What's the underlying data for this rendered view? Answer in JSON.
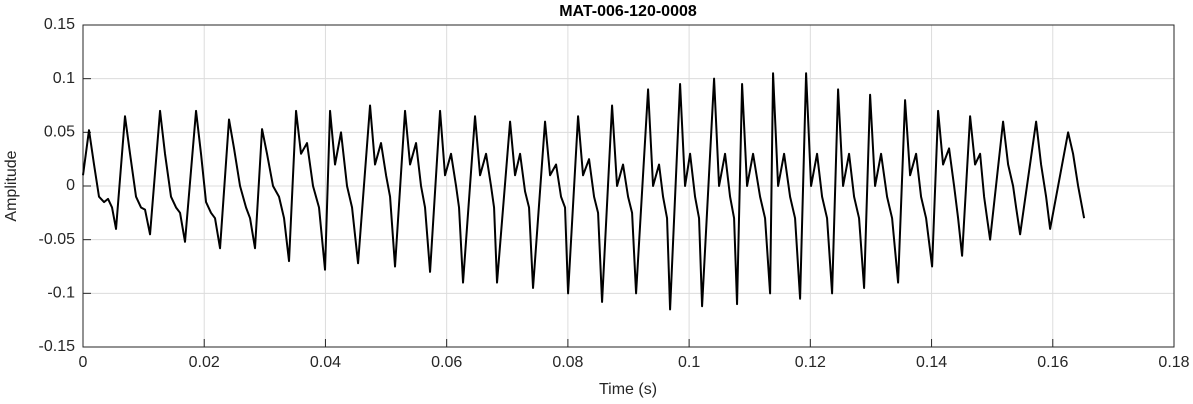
{
  "chart_data": {
    "type": "line",
    "title": "MAT-006-120-0008",
    "x_label": "Time (s)",
    "y_label": "Amplitude",
    "color": "#000000",
    "grid": true,
    "xlim": [
      0,
      0.18
    ],
    "xticks": [
      0,
      0.02,
      0.04,
      0.06,
      0.08,
      0.1,
      0.12,
      0.14,
      0.16,
      0.18
    ],
    "ylim": [
      -0.15,
      0.15
    ],
    "yticks": [
      -0.15,
      -0.1,
      -0.05,
      0,
      0.05,
      0.1,
      0.15
    ],
    "x": [
      0,
      0.00099,
      0.00182,
      0.00264,
      0.00347,
      0.00413,
      0.00479,
      0.00545,
      0.00693,
      0.00776,
      0.00875,
      0.00957,
      0.01023,
      0.01106,
      0.01271,
      0.01353,
      0.01452,
      0.01535,
      0.01601,
      0.01683,
      0.01865,
      0.01947,
      0.0203,
      0.02112,
      0.02178,
      0.02261,
      0.02409,
      0.02492,
      0.02591,
      0.0269,
      0.02756,
      0.02838,
      0.02954,
      0.03036,
      0.03135,
      0.03234,
      0.03317,
      0.03399,
      0.03515,
      0.03597,
      0.03696,
      0.03795,
      0.03894,
      0.03993,
      0.04076,
      0.04158,
      0.04257,
      0.04356,
      0.04439,
      0.04538,
      0.04736,
      0.04818,
      0.04917,
      0.05,
      0.05066,
      0.05148,
      0.05313,
      0.05396,
      0.05495,
      0.05577,
      0.05643,
      0.05726,
      0.05891,
      0.05973,
      0.06072,
      0.06155,
      0.06204,
      0.0627,
      0.06468,
      0.06551,
      0.0665,
      0.06732,
      0.06782,
      0.06831,
      0.07046,
      0.07128,
      0.07211,
      0.07293,
      0.07359,
      0.07425,
      0.07623,
      0.07706,
      0.07805,
      0.07887,
      0.07953,
      0.08003,
      0.08168,
      0.0825,
      0.08349,
      0.08432,
      0.08498,
      0.08564,
      0.08729,
      0.08811,
      0.0891,
      0.08993,
      0.09059,
      0.09125,
      0.09323,
      0.09405,
      0.09504,
      0.0957,
      0.09636,
      0.09686,
      0.09851,
      0.09933,
      0.10016,
      0.10098,
      0.10164,
      0.10214,
      0.10412,
      0.10494,
      0.10593,
      0.10676,
      0.10742,
      0.10791,
      0.10874,
      0.10956,
      0.11055,
      0.11171,
      0.11253,
      0.11336,
      0.11385,
      0.11468,
      0.11567,
      0.11666,
      0.11748,
      0.11831,
      0.1193,
      0.12012,
      0.12111,
      0.12194,
      0.12276,
      0.12359,
      0.12458,
      0.1254,
      0.12639,
      0.12722,
      0.12804,
      0.12887,
      0.12986,
      0.13068,
      0.13167,
      0.13266,
      0.13349,
      0.13448,
      0.13563,
      0.13646,
      0.13745,
      0.13827,
      0.1391,
      0.14009,
      0.14108,
      0.1419,
      0.14289,
      0.14372,
      0.14438,
      0.14504,
      0.14636,
      0.14718,
      0.14801,
      0.14867,
      0.14916,
      0.14966,
      0.1518,
      0.15263,
      0.15345,
      0.15395,
      0.15461,
      0.15725,
      0.15807,
      0.1589,
      0.15956,
      0.16253,
      0.16335,
      0.16418,
      0.16484,
      0.16517
    ],
    "values": [
      0.01,
      0.052,
      0.02,
      -0.01,
      -0.015,
      -0.012,
      -0.02,
      -0.04,
      0.065,
      0.03,
      -0.01,
      -0.02,
      -0.022,
      -0.045,
      0.07,
      0.03,
      -0.01,
      -0.02,
      -0.025,
      -0.052,
      0.07,
      0.03,
      -0.015,
      -0.025,
      -0.03,
      -0.058,
      0.062,
      0.035,
      0,
      -0.02,
      -0.03,
      -0.058,
      0.053,
      0.03,
      0,
      -0.01,
      -0.03,
      -0.07,
      0.07,
      0.03,
      0.04,
      0,
      -0.02,
      -0.078,
      0.07,
      0.02,
      0.05,
      0,
      -0.02,
      -0.072,
      0.075,
      0.02,
      0.04,
      0.01,
      -0.01,
      -0.075,
      0.07,
      0.02,
      0.04,
      0,
      -0.02,
      -0.08,
      0.07,
      0.01,
      0.03,
      0,
      -0.02,
      -0.09,
      0.065,
      0.01,
      0.03,
      0,
      -0.02,
      -0.09,
      0.06,
      0.01,
      0.03,
      -0.005,
      -0.02,
      -0.095,
      0.06,
      0.01,
      0.02,
      -0.01,
      -0.02,
      -0.1,
      0.065,
      0.01,
      0.025,
      -0.01,
      -0.025,
      -0.108,
      0.075,
      0,
      0.02,
      -0.01,
      -0.025,
      -0.1,
      0.09,
      0,
      0.02,
      -0.01,
      -0.03,
      -0.115,
      0.095,
      0,
      0.03,
      -0.01,
      -0.03,
      -0.112,
      0.1,
      0,
      0.03,
      -0.01,
      -0.03,
      -0.11,
      0.095,
      0,
      0.03,
      -0.01,
      -0.03,
      -0.1,
      0.105,
      0,
      0.03,
      -0.01,
      -0.03,
      -0.105,
      0.105,
      0,
      0.03,
      -0.01,
      -0.03,
      -0.1,
      0.09,
      0,
      0.03,
      -0.01,
      -0.03,
      -0.095,
      0.085,
      0,
      0.03,
      -0.01,
      -0.03,
      -0.09,
      0.08,
      0.01,
      0.03,
      -0.01,
      -0.03,
      -0.075,
      0.07,
      0.02,
      0.035,
      0,
      -0.03,
      -0.065,
      0.065,
      0.02,
      0.03,
      -0.01,
      -0.03,
      -0.05,
      0.06,
      0.02,
      0,
      -0.02,
      -0.045,
      0.06,
      0.02,
      -0.01,
      -0.04,
      0.05,
      0.03,
      0,
      -0.02,
      -0.03
    ]
  }
}
